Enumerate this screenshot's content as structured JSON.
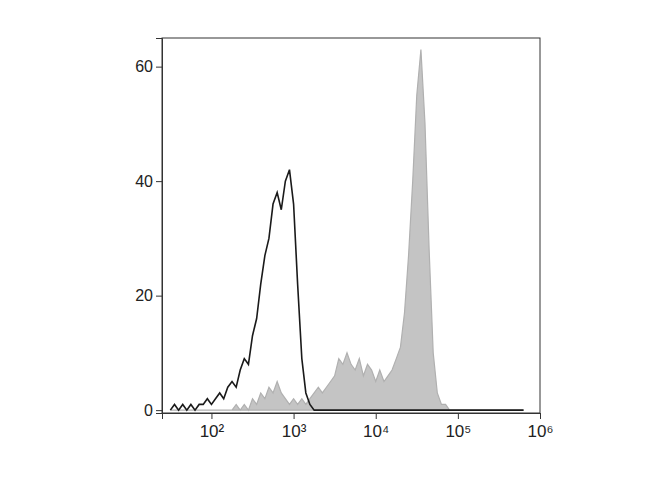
{
  "chart_data": {
    "type": "line",
    "log": "x",
    "x": [
      31.6,
      35.5,
      39.8,
      44.7,
      50.1,
      56.2,
      63.1,
      70.8,
      79.4,
      89.1,
      100,
      112,
      126,
      141,
      158,
      178,
      200,
      224,
      251,
      282,
      316,
      355,
      398,
      447,
      501,
      562,
      631,
      708,
      794,
      891,
      1000,
      1120,
      1260,
      1410,
      1580,
      1780,
      2000,
      2240,
      2510,
      2820,
      3160,
      3550,
      3980,
      4470,
      5010,
      5620,
      6310,
      7080,
      7940,
      8910,
      10000,
      11200,
      12600,
      14100,
      15800,
      17800,
      20000,
      22400,
      25100,
      28200,
      31600,
      35500,
      39800,
      44700,
      50100,
      56200,
      63100,
      70800,
      79400,
      89100,
      100000,
      112000,
      126000,
      141000,
      158000,
      178000,
      200000,
      251000,
      398000,
      631000
    ],
    "series": [
      {
        "type": "area",
        "color": "#c4c4c4",
        "values": [
          0,
          0,
          0,
          0,
          0,
          0,
          0,
          0,
          0,
          0,
          0,
          0,
          0,
          0,
          0,
          0,
          1,
          0,
          1,
          0,
          2,
          1,
          3,
          2,
          4,
          3,
          5,
          3,
          2,
          1,
          2,
          1,
          2,
          1,
          2,
          3,
          4,
          3,
          4,
          5,
          6,
          9,
          8,
          10,
          8,
          7,
          9,
          6,
          8,
          7,
          5,
          7,
          5,
          6,
          7,
          9,
          11,
          17,
          27,
          40,
          55,
          63,
          50,
          28,
          10,
          3,
          1,
          1,
          0,
          0,
          0,
          0,
          0,
          0,
          0,
          0,
          0,
          0,
          0,
          0
        ]
      },
      {
        "type": "line",
        "color": "#1a1a1a",
        "values": [
          0,
          1,
          0,
          1,
          0,
          1,
          0,
          1,
          1,
          2,
          1,
          2,
          3,
          2,
          4,
          5,
          4,
          7,
          9,
          8,
          13,
          16,
          22,
          27,
          30,
          36,
          38,
          35,
          40,
          42,
          36,
          22,
          9,
          3,
          1,
          0,
          0,
          0,
          0,
          0,
          0,
          0,
          0,
          0,
          0,
          0,
          0,
          0,
          0,
          0,
          0,
          0,
          0,
          0,
          0,
          0,
          0,
          0,
          0,
          0,
          0,
          0,
          0,
          0,
          0,
          0,
          0,
          0,
          0,
          0,
          0,
          0,
          0,
          0,
          0,
          0,
          0,
          0,
          0,
          0
        ]
      }
    ],
    "xlim": [
      25,
      1000000
    ],
    "xticks": [
      {
        "value": 100,
        "label": "10²"
      },
      {
        "value": 1000,
        "label": "10³"
      },
      {
        "value": 10000,
        "label": "10⁴"
      },
      {
        "value": 100000,
        "label": "10⁵"
      },
      {
        "value": 1000000,
        "label": "10⁶"
      }
    ],
    "ylim": [
      -0.5,
      65
    ],
    "yticks": [
      0,
      20,
      40,
      60
    ]
  }
}
